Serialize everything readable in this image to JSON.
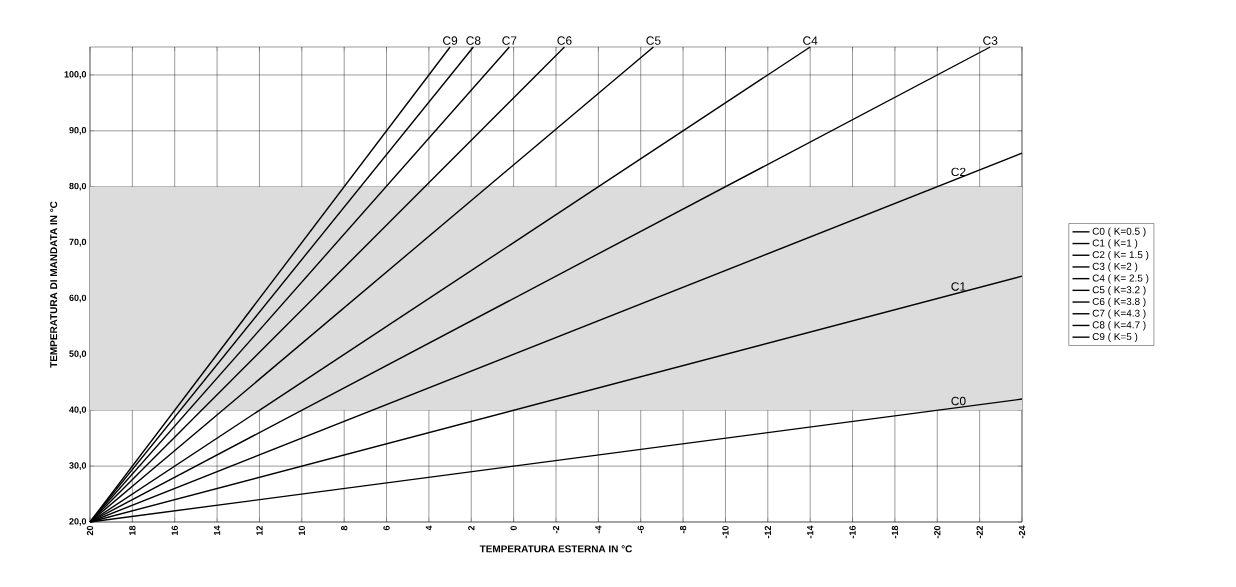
{
  "chart_data": {
    "type": "line",
    "xlabel": "TEMPERATURA ESTERNA IN °C",
    "ylabel": "TEMPERATURA DI MANDATA IN °C",
    "xlim": [
      20,
      -24
    ],
    "ylim": [
      20,
      105
    ],
    "xticks": [
      20,
      18,
      16,
      14,
      12,
      10,
      8,
      6,
      4,
      2,
      0,
      -2,
      -4,
      -6,
      -8,
      -10,
      -12,
      -14,
      -16,
      -18,
      -20,
      -22,
      -24
    ],
    "yticks": [
      {
        "value": 20,
        "label": "20,0"
      },
      {
        "value": 30,
        "label": "30,0"
      },
      {
        "value": 40,
        "label": "40,0"
      },
      {
        "value": 50,
        "label": "50,0"
      },
      {
        "value": 60,
        "label": "60,0"
      },
      {
        "value": 70,
        "label": "70,0"
      },
      {
        "value": 80,
        "label": "80,0"
      },
      {
        "value": 90,
        "label": "90,0"
      },
      {
        "value": 100,
        "label": "100,0"
      }
    ],
    "grid": true,
    "legend": "right",
    "marker": "none",
    "line_style": "solid",
    "bands": [
      {
        "axis": "y",
        "from": 40,
        "to": 80,
        "color": "#dcdcdc"
      }
    ],
    "series": [
      {
        "name": "C0 ( K=0.5 )",
        "color": "#000000",
        "x": [
          20,
          -24
        ],
        "values": [
          20,
          42
        ]
      },
      {
        "name": "C1 ( K=1 )",
        "color": "#000000",
        "x": [
          20,
          -24
        ],
        "values": [
          20,
          64
        ]
      },
      {
        "name": "C2 ( K= 1.5 )",
        "color": "#000000",
        "x": [
          20,
          -24
        ],
        "values": [
          20,
          86
        ]
      },
      {
        "name": "C3 ( K=2 )",
        "color": "#000000",
        "x": [
          20,
          -22.5
        ],
        "values": [
          20,
          105
        ]
      },
      {
        "name": "C4 ( K= 2.5 )",
        "color": "#000000",
        "x": [
          20,
          -14
        ],
        "values": [
          20,
          105
        ]
      },
      {
        "name": "C5 ( K=3.2 )",
        "color": "#000000",
        "x": [
          20,
          -6.6
        ],
        "values": [
          20,
          105
        ]
      },
      {
        "name": "C6 ( K=3.8 )",
        "color": "#000000",
        "x": [
          20,
          -2.4
        ],
        "values": [
          20,
          105
        ]
      },
      {
        "name": "C7 ( K=4.3 )",
        "color": "#000000",
        "x": [
          20,
          0.2
        ],
        "values": [
          20,
          105
        ]
      },
      {
        "name": "C8 ( K=4.7 )",
        "color": "#000000",
        "x": [
          20,
          1.9
        ],
        "values": [
          20,
          105
        ]
      },
      {
        "name": "C9 ( K=5 )",
        "color": "#000000",
        "x": [
          20,
          3
        ],
        "values": [
          20,
          105
        ]
      }
    ],
    "annotations": [
      {
        "text": "C9",
        "x": 3,
        "y": 105
      },
      {
        "text": "C8",
        "x": 1.9,
        "y": 105
      },
      {
        "text": "C7",
        "x": 0.2,
        "y": 105
      },
      {
        "text": "C6",
        "x": -2.4,
        "y": 105
      },
      {
        "text": "C5",
        "x": -6.6,
        "y": 105
      },
      {
        "text": "C4",
        "x": -14,
        "y": 105
      },
      {
        "text": "C3",
        "x": -22.5,
        "y": 105
      },
      {
        "text": "C2",
        "x": -21,
        "y": 81.5
      },
      {
        "text": "C1",
        "x": -21,
        "y": 61
      },
      {
        "text": "C0",
        "x": -21,
        "y": 40.5
      }
    ]
  }
}
